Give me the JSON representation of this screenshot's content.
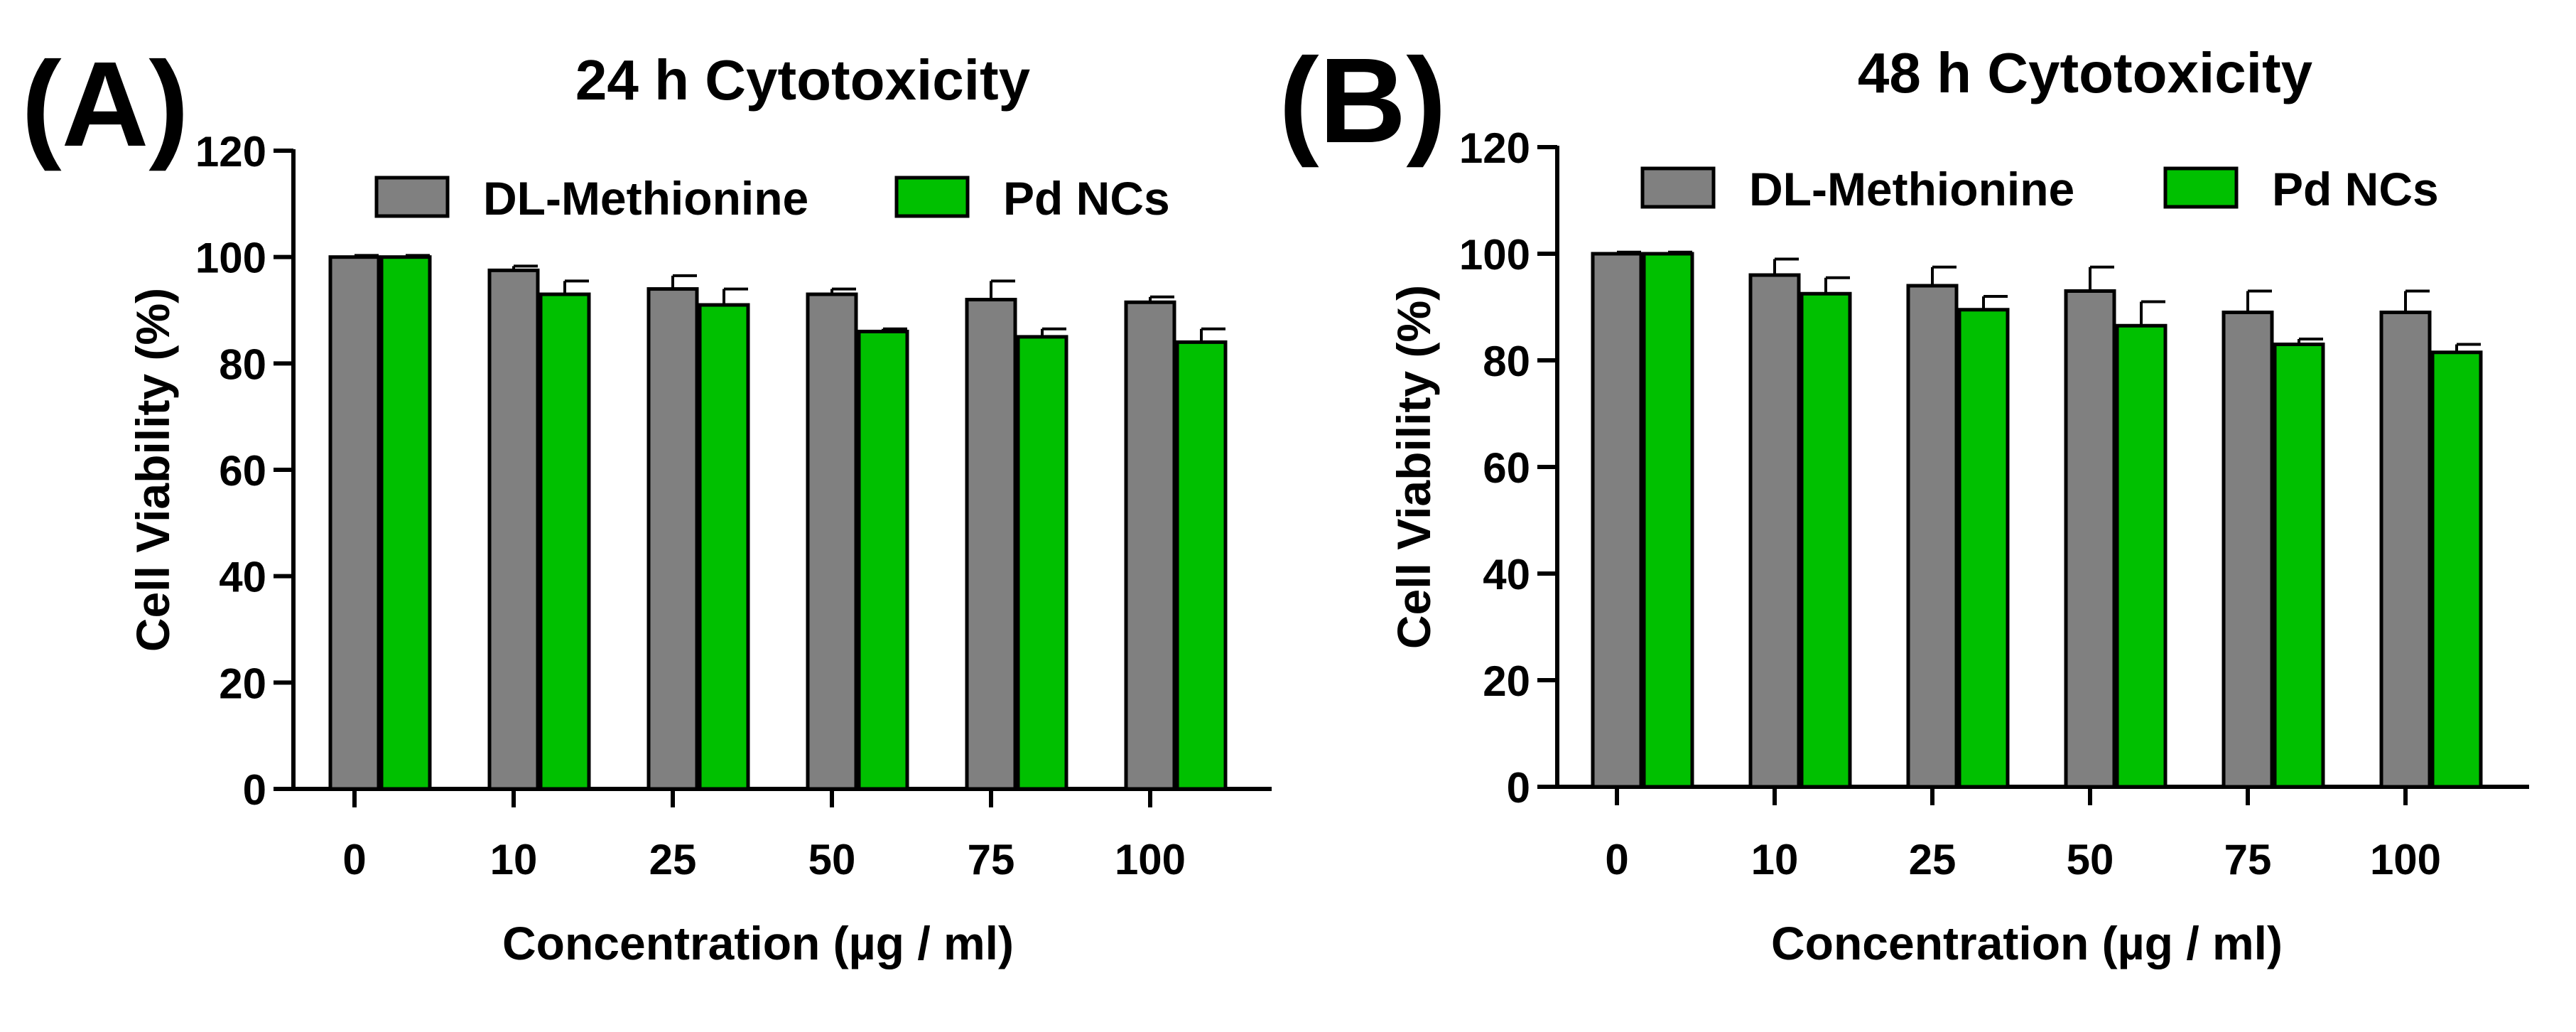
{
  "figure": {
    "panels": [
      {
        "letter": "(A)"
      },
      {
        "letter": "(B)"
      }
    ]
  },
  "colors": {
    "dl_methionine": "#808080",
    "pd_ncs": "#00c000",
    "axis": "#000000"
  },
  "chart_data": [
    {
      "type": "bar",
      "panel": "(A)",
      "title": "24 h Cytotoxicity",
      "xlabel": "Concentration (µg / ml)",
      "ylabel": "Cell Viability (%)",
      "ylim": [
        0,
        120
      ],
      "yticks": [
        0,
        20,
        40,
        60,
        80,
        100,
        120
      ],
      "categories": [
        "0",
        "10",
        "25",
        "50",
        "75",
        "100"
      ],
      "legend_position": "top",
      "series": [
        {
          "name": "DL-Methionine",
          "values": [
            100,
            97.5,
            94,
            93,
            92,
            91.5
          ],
          "errors": [
            0.3,
            0.8,
            2.5,
            1.0,
            3.5,
            1.0
          ]
        },
        {
          "name": "Pd NCs",
          "values": [
            100,
            93,
            91,
            86,
            85,
            84
          ],
          "errors": [
            0.3,
            2.5,
            3.0,
            0.5,
            1.5,
            2.5
          ]
        }
      ]
    },
    {
      "type": "bar",
      "panel": "(B)",
      "title": "48 h Cytotoxicity",
      "xlabel": "Concentration (µg / ml)",
      "ylabel": "Cell Viability (%)",
      "ylim": [
        0,
        120
      ],
      "yticks": [
        0,
        20,
        40,
        60,
        80,
        100,
        120
      ],
      "categories": [
        "0",
        "10",
        "25",
        "50",
        "75",
        "100"
      ],
      "legend_position": "top",
      "series": [
        {
          "name": "DL-Methionine",
          "values": [
            100,
            96,
            94,
            93,
            89,
            89
          ],
          "errors": [
            0.3,
            3.0,
            3.5,
            4.5,
            4.0,
            4.0
          ]
        },
        {
          "name": "Pd NCs",
          "values": [
            100,
            92.5,
            89.5,
            86.5,
            83,
            81.5
          ],
          "errors": [
            0.3,
            3.0,
            2.5,
            4.5,
            1.0,
            1.5
          ]
        }
      ]
    }
  ]
}
